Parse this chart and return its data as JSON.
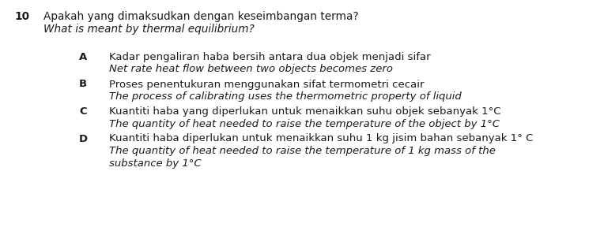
{
  "background_color": "#ffffff",
  "question_number": "10",
  "question_line1": "Apakah yang dimaksudkan dengan keseimbangan terma?",
  "question_line2": "What is meant by thermal equilibrium?",
  "options": [
    {
      "label": "A",
      "line1": "Kadar pengaliran haba bersih antara dua objek menjadi sifar",
      "line2": "Net rate heat flow between two objects becomes zero",
      "line3": null
    },
    {
      "label": "B",
      "line1": "Proses penentukuran menggunakan sifat termometri cecair",
      "line2": "The process of calibrating uses the thermometric property of liquid",
      "line3": null
    },
    {
      "label": "C",
      "line1": "Kuantiti haba yang diperlukan untuk menaikkan suhu objek sebanyak 1°C",
      "line2": "The quantity of heat needed to raise the temperature of the object by 1°C",
      "line3": null
    },
    {
      "label": "D",
      "line1": "Kuantiti haba diperlukan untuk menaikkan suhu 1 kg jisim bahan sebanyak 1° C",
      "line2": "The quantity of heat needed to raise the temperature of 1 kg mass of the",
      "line3": "substance by 1°C"
    }
  ],
  "font_size_q": 9.8,
  "font_size_opt": 9.5,
  "text_color": "#1a1a1a"
}
